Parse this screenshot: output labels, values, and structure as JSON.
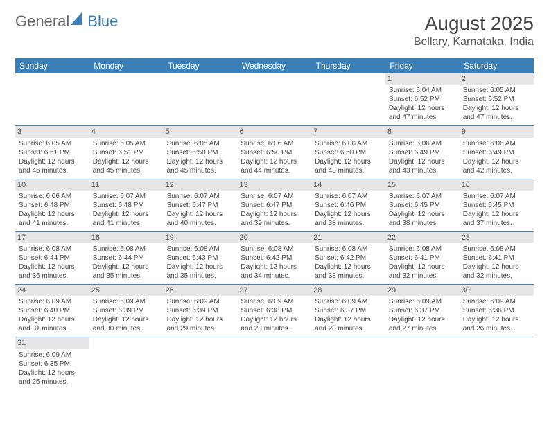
{
  "logo": {
    "text_a": "General",
    "text_b": "Blue"
  },
  "title": "August 2025",
  "location": "Bellary, Karnataka, India",
  "colors": {
    "header_bg": "#3a7fb8",
    "daybar_bg": "#e6e6e6",
    "text": "#444444"
  },
  "weekdays": [
    "Sunday",
    "Monday",
    "Tuesday",
    "Wednesday",
    "Thursday",
    "Friday",
    "Saturday"
  ],
  "weeks": [
    [
      null,
      null,
      null,
      null,
      null,
      {
        "n": "1",
        "sr": "Sunrise: 6:04 AM",
        "ss": "Sunset: 6:52 PM",
        "d1": "Daylight: 12 hours",
        "d2": "and 47 minutes."
      },
      {
        "n": "2",
        "sr": "Sunrise: 6:05 AM",
        "ss": "Sunset: 6:52 PM",
        "d1": "Daylight: 12 hours",
        "d2": "and 47 minutes."
      }
    ],
    [
      {
        "n": "3",
        "sr": "Sunrise: 6:05 AM",
        "ss": "Sunset: 6:51 PM",
        "d1": "Daylight: 12 hours",
        "d2": "and 46 minutes."
      },
      {
        "n": "4",
        "sr": "Sunrise: 6:05 AM",
        "ss": "Sunset: 6:51 PM",
        "d1": "Daylight: 12 hours",
        "d2": "and 45 minutes."
      },
      {
        "n": "5",
        "sr": "Sunrise: 6:05 AM",
        "ss": "Sunset: 6:50 PM",
        "d1": "Daylight: 12 hours",
        "d2": "and 45 minutes."
      },
      {
        "n": "6",
        "sr": "Sunrise: 6:06 AM",
        "ss": "Sunset: 6:50 PM",
        "d1": "Daylight: 12 hours",
        "d2": "and 44 minutes."
      },
      {
        "n": "7",
        "sr": "Sunrise: 6:06 AM",
        "ss": "Sunset: 6:50 PM",
        "d1": "Daylight: 12 hours",
        "d2": "and 43 minutes."
      },
      {
        "n": "8",
        "sr": "Sunrise: 6:06 AM",
        "ss": "Sunset: 6:49 PM",
        "d1": "Daylight: 12 hours",
        "d2": "and 43 minutes."
      },
      {
        "n": "9",
        "sr": "Sunrise: 6:06 AM",
        "ss": "Sunset: 6:49 PM",
        "d1": "Daylight: 12 hours",
        "d2": "and 42 minutes."
      }
    ],
    [
      {
        "n": "10",
        "sr": "Sunrise: 6:06 AM",
        "ss": "Sunset: 6:48 PM",
        "d1": "Daylight: 12 hours",
        "d2": "and 41 minutes."
      },
      {
        "n": "11",
        "sr": "Sunrise: 6:07 AM",
        "ss": "Sunset: 6:48 PM",
        "d1": "Daylight: 12 hours",
        "d2": "and 41 minutes."
      },
      {
        "n": "12",
        "sr": "Sunrise: 6:07 AM",
        "ss": "Sunset: 6:47 PM",
        "d1": "Daylight: 12 hours",
        "d2": "and 40 minutes."
      },
      {
        "n": "13",
        "sr": "Sunrise: 6:07 AM",
        "ss": "Sunset: 6:47 PM",
        "d1": "Daylight: 12 hours",
        "d2": "and 39 minutes."
      },
      {
        "n": "14",
        "sr": "Sunrise: 6:07 AM",
        "ss": "Sunset: 6:46 PM",
        "d1": "Daylight: 12 hours",
        "d2": "and 38 minutes."
      },
      {
        "n": "15",
        "sr": "Sunrise: 6:07 AM",
        "ss": "Sunset: 6:45 PM",
        "d1": "Daylight: 12 hours",
        "d2": "and 38 minutes."
      },
      {
        "n": "16",
        "sr": "Sunrise: 6:07 AM",
        "ss": "Sunset: 6:45 PM",
        "d1": "Daylight: 12 hours",
        "d2": "and 37 minutes."
      }
    ],
    [
      {
        "n": "17",
        "sr": "Sunrise: 6:08 AM",
        "ss": "Sunset: 6:44 PM",
        "d1": "Daylight: 12 hours",
        "d2": "and 36 minutes."
      },
      {
        "n": "18",
        "sr": "Sunrise: 6:08 AM",
        "ss": "Sunset: 6:44 PM",
        "d1": "Daylight: 12 hours",
        "d2": "and 35 minutes."
      },
      {
        "n": "19",
        "sr": "Sunrise: 6:08 AM",
        "ss": "Sunset: 6:43 PM",
        "d1": "Daylight: 12 hours",
        "d2": "and 35 minutes."
      },
      {
        "n": "20",
        "sr": "Sunrise: 6:08 AM",
        "ss": "Sunset: 6:42 PM",
        "d1": "Daylight: 12 hours",
        "d2": "and 34 minutes."
      },
      {
        "n": "21",
        "sr": "Sunrise: 6:08 AM",
        "ss": "Sunset: 6:42 PM",
        "d1": "Daylight: 12 hours",
        "d2": "and 33 minutes."
      },
      {
        "n": "22",
        "sr": "Sunrise: 6:08 AM",
        "ss": "Sunset: 6:41 PM",
        "d1": "Daylight: 12 hours",
        "d2": "and 32 minutes."
      },
      {
        "n": "23",
        "sr": "Sunrise: 6:08 AM",
        "ss": "Sunset: 6:41 PM",
        "d1": "Daylight: 12 hours",
        "d2": "and 32 minutes."
      }
    ],
    [
      {
        "n": "24",
        "sr": "Sunrise: 6:09 AM",
        "ss": "Sunset: 6:40 PM",
        "d1": "Daylight: 12 hours",
        "d2": "and 31 minutes."
      },
      {
        "n": "25",
        "sr": "Sunrise: 6:09 AM",
        "ss": "Sunset: 6:39 PM",
        "d1": "Daylight: 12 hours",
        "d2": "and 30 minutes."
      },
      {
        "n": "26",
        "sr": "Sunrise: 6:09 AM",
        "ss": "Sunset: 6:39 PM",
        "d1": "Daylight: 12 hours",
        "d2": "and 29 minutes."
      },
      {
        "n": "27",
        "sr": "Sunrise: 6:09 AM",
        "ss": "Sunset: 6:38 PM",
        "d1": "Daylight: 12 hours",
        "d2": "and 28 minutes."
      },
      {
        "n": "28",
        "sr": "Sunrise: 6:09 AM",
        "ss": "Sunset: 6:37 PM",
        "d1": "Daylight: 12 hours",
        "d2": "and 28 minutes."
      },
      {
        "n": "29",
        "sr": "Sunrise: 6:09 AM",
        "ss": "Sunset: 6:37 PM",
        "d1": "Daylight: 12 hours",
        "d2": "and 27 minutes."
      },
      {
        "n": "30",
        "sr": "Sunrise: 6:09 AM",
        "ss": "Sunset: 6:36 PM",
        "d1": "Daylight: 12 hours",
        "d2": "and 26 minutes."
      }
    ],
    [
      {
        "n": "31",
        "sr": "Sunrise: 6:09 AM",
        "ss": "Sunset: 6:35 PM",
        "d1": "Daylight: 12 hours",
        "d2": "and 25 minutes."
      },
      null,
      null,
      null,
      null,
      null,
      null
    ]
  ]
}
